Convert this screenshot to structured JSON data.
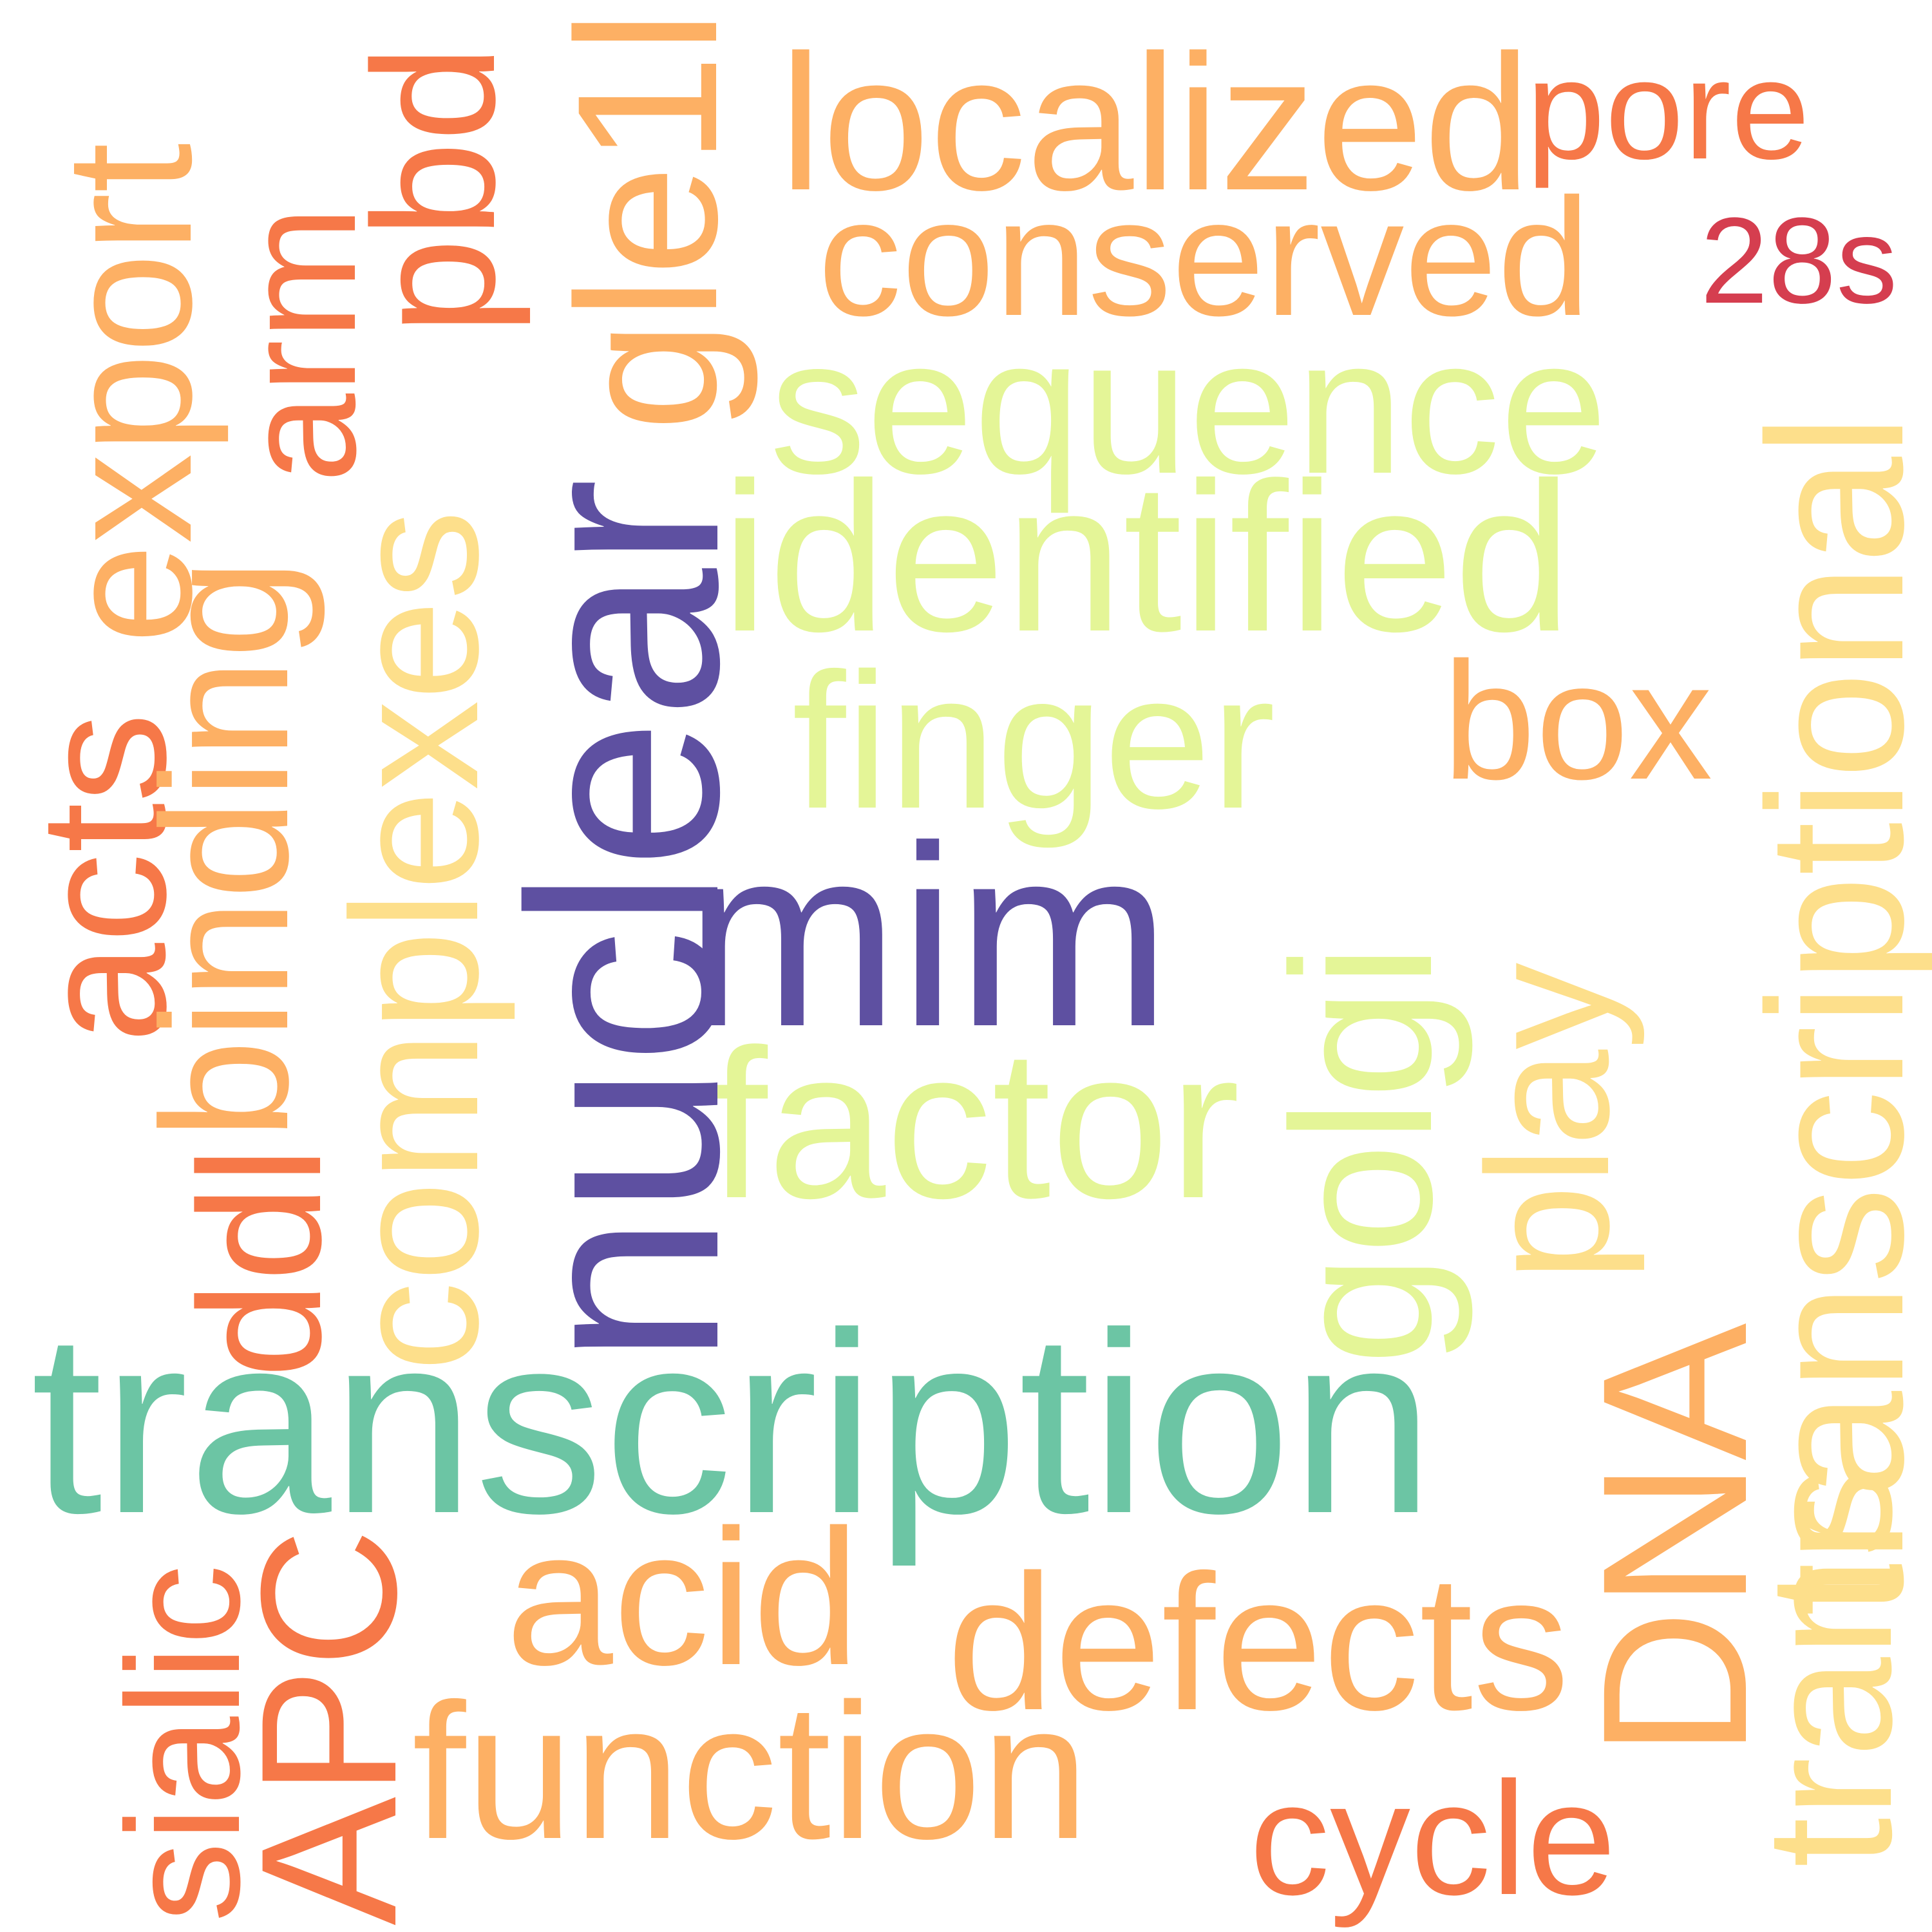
{
  "words": {
    "mim": "mim",
    "nuclear": "nuclear",
    "transcription": "transcription",
    "localized": "localized",
    "pore": "pore",
    "conserved": "conserved",
    "s28": "28s",
    "sequence": "sequence",
    "identified": "identified",
    "finger": "finger",
    "box": "box",
    "factor": "factor",
    "golgi": "golgi",
    "play": "play",
    "transcriptional": "transcriptional",
    "dna": "DNA",
    "trans": "trans",
    "acid": "acid",
    "defects": "defects",
    "function": "function",
    "cycle": "cycle",
    "export": "export",
    "acts": "acts",
    "arm": "arm",
    "binding": "binding",
    "pbd": "pbd",
    "complexes": "complexes",
    "gle1l": "gle1l",
    "dd": "ddl",
    "sialic": "sialic",
    "apc": "APC"
  },
  "colors": {
    "purple": "#5e50a1",
    "teal": "#6cc5a4",
    "lime": "#e4f597",
    "pale_yellow": "#fddf8b",
    "light_orange": "#fdb064",
    "orange": "#f67848",
    "red": "#d53e4f"
  }
}
